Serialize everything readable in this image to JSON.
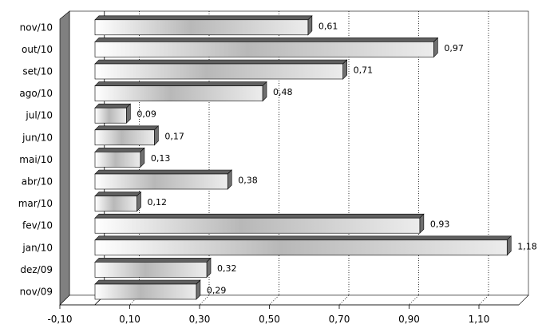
{
  "chart_data": {
    "type": "bar",
    "orientation": "horizontal",
    "style": "3d",
    "categories": [
      "nov/10",
      "out/10",
      "set/10",
      "ago/10",
      "jul/10",
      "jun/10",
      "mai/10",
      "abr/10",
      "mar/10",
      "fev/10",
      "jan/10",
      "dez/09",
      "nov/09"
    ],
    "values": [
      0.61,
      0.97,
      0.71,
      0.48,
      0.09,
      0.17,
      0.13,
      0.38,
      0.12,
      0.93,
      1.18,
      0.32,
      0.29
    ],
    "value_labels": [
      "0,61",
      "0,97",
      "0,71",
      "0,48",
      "0,09",
      "0,17",
      "0,13",
      "0,38",
      "0,12",
      "0,93",
      "1,18",
      "0,32",
      "0,29"
    ],
    "xticks": [
      -0.1,
      0.1,
      0.3,
      0.5,
      0.7,
      0.9,
      1.1
    ],
    "xtick_labels": [
      "-0,10",
      "0,10",
      "0,30",
      "0,50",
      "0,70",
      "0,90",
      "1,10"
    ],
    "xlim": [
      -0.1,
      1.2
    ],
    "grid": "vertical-dotted",
    "legend": "none",
    "bar_color": "#c0c0c0",
    "wall_color": "#808080"
  }
}
